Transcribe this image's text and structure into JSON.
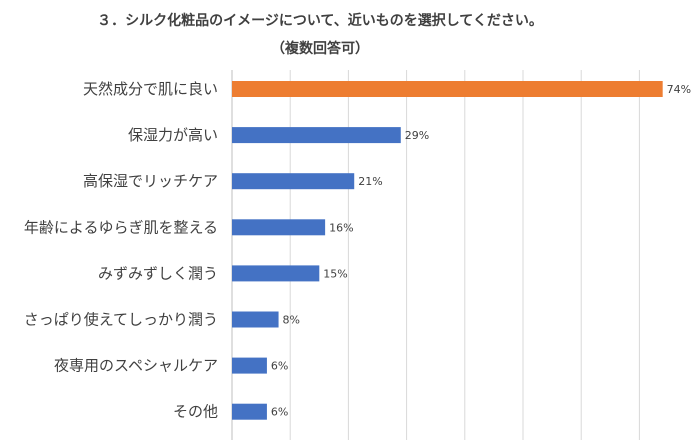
{
  "chart_data": {
    "type": "bar",
    "orientation": "horizontal",
    "title": "３．シルク化粧品のイメージについて、近いものを選択してください。",
    "subtitle": "（複数回答可）",
    "categories": [
      "天然成分で肌に良い",
      "保湿力が高い",
      "高保湿でリッチケア",
      "年齢によるゆらぎ肌を整える",
      "みずみずしく潤う",
      "さっぱり使えてしっかり潤う",
      "夜専用のスペシャルケア",
      "その他"
    ],
    "values": [
      74,
      29,
      21,
      16,
      15,
      8,
      6,
      6
    ],
    "value_labels": [
      "74%",
      "29%",
      "21%",
      "16%",
      "15%",
      "8%",
      "6%",
      "6%"
    ],
    "unit": "%",
    "xlim": [
      0,
      75
    ],
    "grid": true,
    "colors": {
      "highlight": "#ED7D31",
      "default": "#4472C4",
      "grid": "#D9D9D9"
    },
    "highlight_index": 0
  }
}
